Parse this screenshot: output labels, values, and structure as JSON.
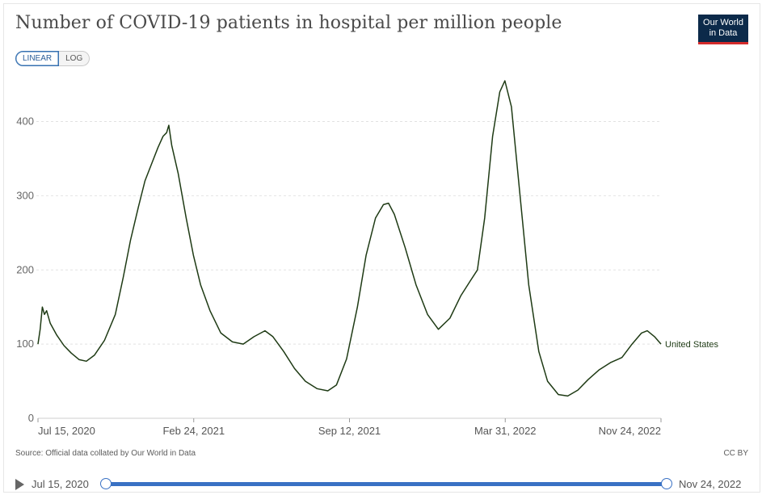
{
  "header": {
    "title": "Number of COVID-19 patients in hospital per million people",
    "logo_line1": "Our World",
    "logo_line2": "in Data"
  },
  "scale_toggle": {
    "linear_label": "LINEAR",
    "log_label": "LOG",
    "selected": "LINEAR"
  },
  "colors": {
    "series": "#1e3a14",
    "accent": "#3971c4",
    "logo_bg": "#0c2a4a",
    "logo_bar": "#d42b2b"
  },
  "chart_data": {
    "type": "line",
    "title": "Number of COVID-19 patients in hospital per million people",
    "xlabel": "",
    "ylabel": "",
    "ylim": [
      0,
      450
    ],
    "y_ticks": [
      0,
      100,
      200,
      300,
      400
    ],
    "grid": "horizontal dashed",
    "x_ticks": [
      "Jul 15, 2020",
      "Feb 24, 2021",
      "Sep 12, 2021",
      "Mar 31, 2022",
      "Nov 24, 2022"
    ],
    "xlim": [
      "2020-07-15",
      "2022-11-24"
    ],
    "series": [
      {
        "name": "United States",
        "color": "#1e3a14",
        "points": [
          [
            "2020-07-15",
            100
          ],
          [
            "2020-07-18",
            120
          ],
          [
            "2020-07-21",
            150
          ],
          [
            "2020-07-24",
            140
          ],
          [
            "2020-07-27",
            145
          ],
          [
            "2020-08-01",
            128
          ],
          [
            "2020-08-10",
            112
          ],
          [
            "2020-08-20",
            98
          ],
          [
            "2020-08-30",
            88
          ],
          [
            "2020-09-10",
            79
          ],
          [
            "2020-09-20",
            77
          ],
          [
            "2020-10-01",
            85
          ],
          [
            "2020-10-15",
            105
          ],
          [
            "2020-10-30",
            140
          ],
          [
            "2020-11-10",
            190
          ],
          [
            "2020-11-20",
            240
          ],
          [
            "2020-12-01",
            285
          ],
          [
            "2020-12-10",
            320
          ],
          [
            "2020-12-20",
            345
          ],
          [
            "2020-12-28",
            365
          ],
          [
            "2021-01-04",
            380
          ],
          [
            "2021-01-09",
            385
          ],
          [
            "2021-01-12",
            395
          ],
          [
            "2021-01-16",
            368
          ],
          [
            "2021-01-25",
            330
          ],
          [
            "2021-02-05",
            270
          ],
          [
            "2021-02-15",
            220
          ],
          [
            "2021-02-25",
            180
          ],
          [
            "2021-03-10",
            145
          ],
          [
            "2021-03-25",
            115
          ],
          [
            "2021-04-10",
            103
          ],
          [
            "2021-04-25",
            100
          ],
          [
            "2021-05-10",
            110
          ],
          [
            "2021-05-25",
            118
          ],
          [
            "2021-06-05",
            110
          ],
          [
            "2021-06-20",
            90
          ],
          [
            "2021-07-05",
            67
          ],
          [
            "2021-07-20",
            50
          ],
          [
            "2021-08-05",
            40
          ],
          [
            "2021-08-20",
            37
          ],
          [
            "2021-09-01",
            45
          ],
          [
            "2021-09-15",
            80
          ],
          [
            "2021-09-30",
            150
          ],
          [
            "2021-10-12",
            220
          ],
          [
            "2021-10-25",
            270
          ],
          [
            "2021-11-05",
            288
          ],
          [
            "2021-11-12",
            290
          ],
          [
            "2021-11-20",
            275
          ],
          [
            "2021-12-05",
            230
          ],
          [
            "2021-12-20",
            180
          ],
          [
            "2022-01-05",
            140
          ],
          [
            "2022-01-20",
            120
          ],
          [
            "2022-02-05",
            135
          ],
          [
            "2022-02-20",
            165
          ],
          [
            "2022-03-05",
            185
          ],
          [
            "2022-03-15",
            200
          ],
          [
            "2022-03-25",
            270
          ],
          [
            "2022-04-05",
            380
          ],
          [
            "2022-04-15",
            440
          ],
          [
            "2022-04-22",
            455
          ],
          [
            "2022-05-01",
            420
          ],
          [
            "2022-05-12",
            310
          ],
          [
            "2022-05-25",
            180
          ],
          [
            "2022-06-08",
            90
          ],
          [
            "2022-06-20",
            50
          ],
          [
            "2022-07-05",
            32
          ],
          [
            "2022-07-18",
            30
          ],
          [
            "2022-08-01",
            38
          ],
          [
            "2022-08-15",
            52
          ],
          [
            "2022-08-30",
            65
          ],
          [
            "2022-09-15",
            75
          ],
          [
            "2022-10-01",
            82
          ],
          [
            "2022-10-15",
            100
          ],
          [
            "2022-10-28",
            115
          ],
          [
            "2022-11-05",
            118
          ],
          [
            "2022-11-15",
            110
          ],
          [
            "2022-11-24",
            100
          ]
        ],
        "label": "United States"
      }
    ]
  },
  "footer": {
    "source": "Source: Official data collated by Our World in Data",
    "license": "CC BY"
  },
  "timeline": {
    "start_label": "Jul 15, 2020",
    "end_label": "Nov 24, 2022"
  }
}
